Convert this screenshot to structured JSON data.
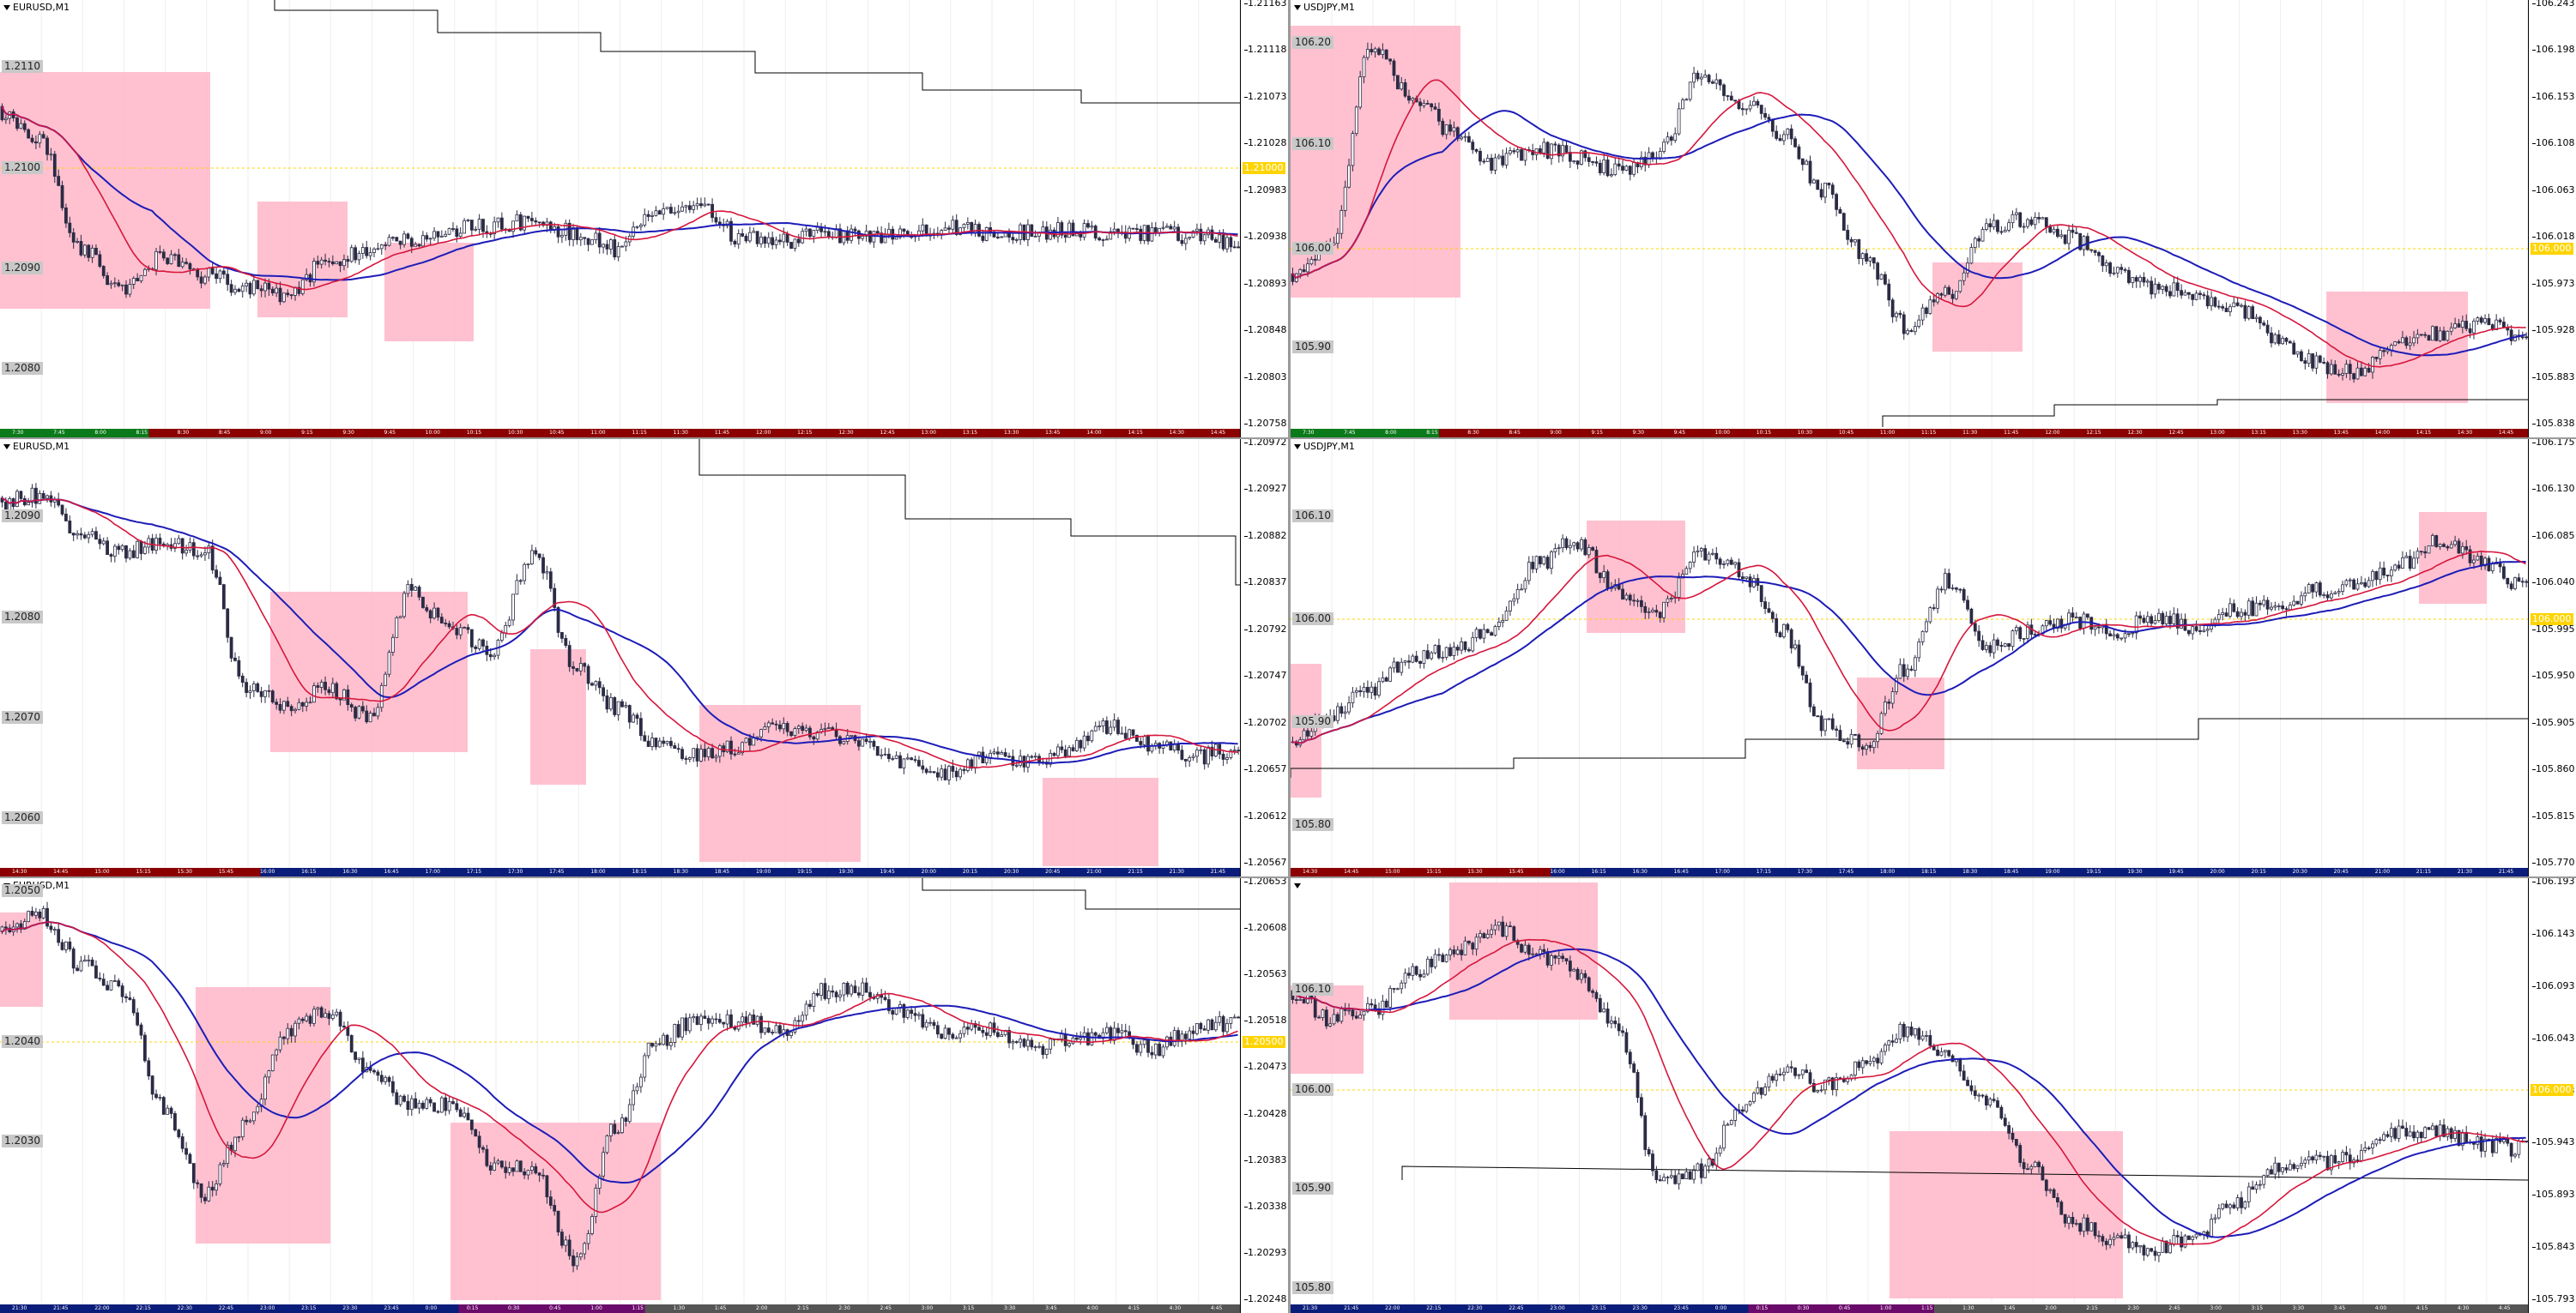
{
  "colors": {
    "ma_red": "#d6163c",
    "ma_blue": "#1c1cb8",
    "zone": "#ffb6c8",
    "hline": "#ffd400",
    "candle": "#2b2b44",
    "step": "#000000"
  },
  "panels": [
    {
      "id": "p1",
      "title": "EURUSD,M1",
      "level_label": "1.21000",
      "axis_ticks": [
        "1.21163",
        "1.21118",
        "1.21073",
        "1.21028",
        "1.20983",
        "1.20938",
        "1.20893",
        "1.20848",
        "1.20803",
        "1.20758"
      ],
      "price_labels": [
        "1.2110",
        "1.2100",
        "1.2090",
        "1.2080"
      ],
      "time_labels": [
        "7:30",
        "7:45",
        "8:00",
        "8:15",
        "8:30",
        "8:45",
        "9:00",
        "9:15",
        "9:30",
        "9:45",
        "10:00",
        "10:15",
        "10:30",
        "10:45",
        "11:00",
        "11:15",
        "11:30",
        "11:45",
        "12:00",
        "12:15",
        "12:30",
        "12:45",
        "13:00",
        "13:15",
        "13:30",
        "13:45",
        "14:00",
        "14:15",
        "14:30",
        "14:45"
      ]
    },
    {
      "id": "p2",
      "title": "USDJPY,M1",
      "level_label": "106.000",
      "axis_ticks": [
        "106.243",
        "106.198",
        "106.153",
        "106.108",
        "106.063",
        "106.018",
        "105.973",
        "105.928",
        "105.883",
        "105.838"
      ],
      "price_labels": [
        "106.20",
        "106.10",
        "106.00",
        "105.90"
      ],
      "time_labels": [
        "7:30",
        "7:45",
        "8:00",
        "8:15",
        "8:30",
        "8:45",
        "9:00",
        "9:15",
        "9:30",
        "9:45",
        "10:00",
        "10:15",
        "10:30",
        "10:45",
        "11:00",
        "11:15",
        "11:30",
        "11:45",
        "12:00",
        "12:15",
        "12:30",
        "12:45",
        "13:00",
        "13:15",
        "13:30",
        "13:45",
        "14:00",
        "14:15",
        "14:30",
        "14:45"
      ]
    },
    {
      "id": "p3",
      "title": "EURUSD,M1",
      "level_label": "",
      "axis_ticks": [
        "1.20972",
        "1.20927",
        "1.20882",
        "1.20837",
        "1.20792",
        "1.20747",
        "1.20702",
        "1.20657",
        "1.20612",
        "1.20567"
      ],
      "price_labels": [
        "1.2090",
        "1.2080",
        "1.2070",
        "1.2060"
      ],
      "time_labels": [
        "14:30",
        "14:45",
        "15:00",
        "15:15",
        "15:30",
        "15:45",
        "16:00",
        "16:15",
        "16:30",
        "16:45",
        "17:00",
        "17:15",
        "17:30",
        "17:45",
        "18:00",
        "18:15",
        "18:30",
        "18:45",
        "19:00",
        "19:15",
        "19:30",
        "19:45",
        "20:00",
        "20:15",
        "20:30",
        "20:45",
        "21:00",
        "21:15",
        "21:30",
        "21:45"
      ]
    },
    {
      "id": "p4",
      "title": "USDJPY,M1",
      "level_label": "106.000",
      "axis_ticks": [
        "106.175",
        "106.130",
        "106.085",
        "106.040",
        "105.995",
        "105.950",
        "105.905",
        "105.860",
        "105.815",
        "105.770"
      ],
      "price_labels": [
        "106.10",
        "106.00",
        "105.90",
        "105.80"
      ],
      "time_labels": [
        "14:30",
        "14:45",
        "15:00",
        "15:15",
        "15:30",
        "15:45",
        "16:00",
        "16:15",
        "16:30",
        "16:45",
        "17:00",
        "17:15",
        "17:30",
        "17:45",
        "18:00",
        "18:15",
        "18:30",
        "18:45",
        "19:00",
        "19:15",
        "19:30",
        "19:45",
        "20:00",
        "20:15",
        "20:30",
        "20:45",
        "21:00",
        "21:15",
        "21:30",
        "21:45"
      ]
    },
    {
      "id": "p5",
      "title": "EURUSD,M1",
      "level_label": "1.20500",
      "axis_ticks": [
        "1.20653",
        "1.20608",
        "1.20563",
        "1.20518",
        "1.20473",
        "1.20428",
        "1.20383",
        "1.20338",
        "1.20293",
        "1.20248"
      ],
      "price_labels": [
        "1.2050",
        "1.2040",
        "1.2030"
      ],
      "time_labels": [
        "21:30",
        "21:45",
        "22:00",
        "22:15",
        "22:30",
        "22:45",
        "23:00",
        "23:15",
        "23:30",
        "23:45",
        "0:00",
        "0:15",
        "0:30",
        "0:45",
        "1:00",
        "1:15",
        "1:30",
        "1:45",
        "2:00",
        "2:15",
        "2:30",
        "2:45",
        "3:00",
        "3:15",
        "3:30",
        "3:45",
        "4:00",
        "4:15",
        "4:30",
        "4:45"
      ]
    },
    {
      "id": "p6",
      "title": "",
      "level_label": "106.000",
      "axis_ticks": [
        "106.193",
        "106.143",
        "106.093",
        "106.043",
        "105.993",
        "105.943",
        "105.893",
        "105.843",
        "105.793"
      ],
      "price_labels": [
        "106.10",
        "106.00",
        "105.90",
        "105.80"
      ],
      "time_labels": [
        "21:30",
        "21:45",
        "22:00",
        "22:15",
        "22:30",
        "22:45",
        "23:00",
        "23:15",
        "23:30",
        "23:45",
        "0:00",
        "0:15",
        "0:30",
        "0:45",
        "1:00",
        "1:15",
        "1:30",
        "1:45",
        "2:00",
        "2:15",
        "2:30",
        "2:45",
        "3:00",
        "3:15",
        "3:30",
        "3:45",
        "4:00",
        "4:15",
        "4:30",
        "4:45"
      ]
    }
  ]
}
